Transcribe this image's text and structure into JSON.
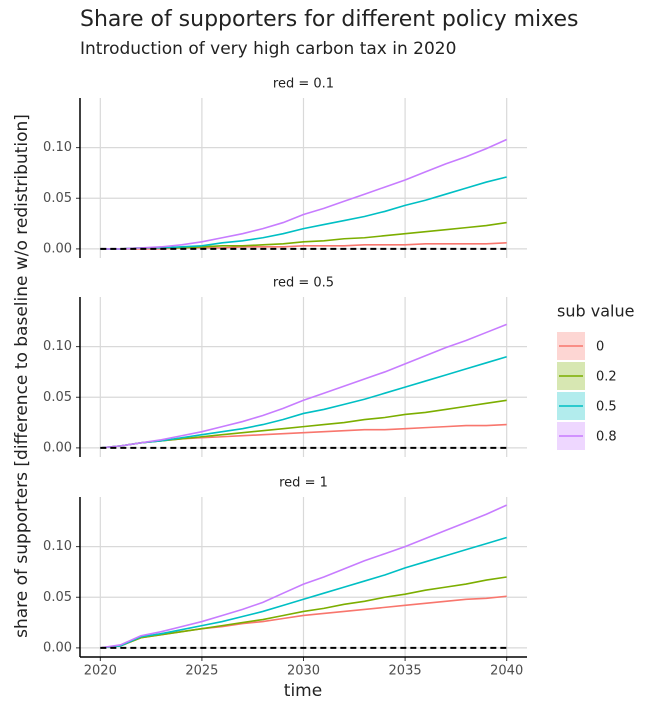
{
  "title": "Share of supporters for different policy mixes",
  "subtitle": "Introduction of very high carbon tax in 2020",
  "y_label": "share of supporters [difference to baseline w/o redistribution]",
  "x_label": "time",
  "legend_title": "sub value",
  "chart_data": [
    {
      "type": "line",
      "title": "red = 0.1",
      "x": [
        2020,
        2021,
        2022,
        2023,
        2024,
        2025,
        2026,
        2027,
        2028,
        2029,
        2030,
        2031,
        2032,
        2033,
        2034,
        2035,
        2036,
        2037,
        2038,
        2039,
        2040
      ],
      "xlim": [
        2019,
        2041
      ],
      "xticks": [
        2020,
        2025,
        2030,
        2035,
        2040
      ],
      "ylim": [
        -0.009,
        0.149
      ],
      "yticks": [
        {
          "value": 0,
          "label": "0.00"
        },
        {
          "value": 0.05,
          "label": "0.05"
        },
        {
          "value": 0.1,
          "label": "0.10"
        }
      ],
      "hline": 0,
      "grid": true,
      "series": [
        {
          "name": "0",
          "color": "#F8766D",
          "values": [
            0,
            0,
            0,
            0,
            0.001,
            0.001,
            0.001,
            0.002,
            0.002,
            0.002,
            0.003,
            0.003,
            0.003,
            0.004,
            0.004,
            0.004,
            0.005,
            0.005,
            0.005,
            0.005,
            0.006
          ]
        },
        {
          "name": "0.2",
          "color": "#7CAE00",
          "values": [
            0,
            0,
            0.001,
            0.001,
            0.001,
            0.002,
            0.003,
            0.003,
            0.004,
            0.005,
            0.007,
            0.008,
            0.01,
            0.011,
            0.013,
            0.015,
            0.017,
            0.019,
            0.021,
            0.023,
            0.026
          ]
        },
        {
          "name": "0.5",
          "color": "#00BFC4",
          "values": [
            0,
            0,
            0.001,
            0.001,
            0.002,
            0.003,
            0.006,
            0.008,
            0.011,
            0.015,
            0.02,
            0.024,
            0.028,
            0.032,
            0.037,
            0.043,
            0.048,
            0.054,
            0.06,
            0.066,
            0.071
          ]
        },
        {
          "name": "0.8",
          "color": "#C77CFF",
          "values": [
            0,
            0,
            0.001,
            0.002,
            0.004,
            0.007,
            0.011,
            0.015,
            0.02,
            0.026,
            0.034,
            0.04,
            0.047,
            0.054,
            0.061,
            0.068,
            0.076,
            0.084,
            0.091,
            0.099,
            0.108
          ]
        }
      ]
    },
    {
      "type": "line",
      "title": "red = 0.5",
      "x": [
        2020,
        2021,
        2022,
        2023,
        2024,
        2025,
        2026,
        2027,
        2028,
        2029,
        2030,
        2031,
        2032,
        2033,
        2034,
        2035,
        2036,
        2037,
        2038,
        2039,
        2040
      ],
      "xlim": [
        2019,
        2041
      ],
      "xticks": [
        2020,
        2025,
        2030,
        2035,
        2040
      ],
      "ylim": [
        -0.009,
        0.149
      ],
      "yticks": [
        {
          "value": 0,
          "label": "0.00"
        },
        {
          "value": 0.05,
          "label": "0.05"
        },
        {
          "value": 0.1,
          "label": "0.10"
        }
      ],
      "hline": 0,
      "grid": true,
      "series": [
        {
          "name": "0",
          "color": "#F8766D",
          "values": [
            0,
            0.002,
            0.005,
            0.007,
            0.009,
            0.01,
            0.011,
            0.012,
            0.013,
            0.014,
            0.015,
            0.016,
            0.017,
            0.018,
            0.018,
            0.019,
            0.02,
            0.021,
            0.022,
            0.022,
            0.023
          ]
        },
        {
          "name": "0.2",
          "color": "#7CAE00",
          "values": [
            0,
            0.002,
            0.005,
            0.007,
            0.009,
            0.011,
            0.013,
            0.015,
            0.017,
            0.019,
            0.021,
            0.023,
            0.025,
            0.028,
            0.03,
            0.033,
            0.035,
            0.038,
            0.041,
            0.044,
            0.047
          ]
        },
        {
          "name": "0.5",
          "color": "#00BFC4",
          "values": [
            0,
            0.002,
            0.005,
            0.007,
            0.01,
            0.013,
            0.016,
            0.019,
            0.023,
            0.028,
            0.034,
            0.038,
            0.043,
            0.048,
            0.054,
            0.06,
            0.066,
            0.072,
            0.078,
            0.084,
            0.09
          ]
        },
        {
          "name": "0.8",
          "color": "#C77CFF",
          "values": [
            0,
            0.002,
            0.005,
            0.008,
            0.012,
            0.016,
            0.021,
            0.026,
            0.032,
            0.039,
            0.047,
            0.054,
            0.061,
            0.068,
            0.075,
            0.083,
            0.091,
            0.099,
            0.106,
            0.114,
            0.122
          ]
        }
      ]
    },
    {
      "type": "line",
      "title": "red = 1",
      "x": [
        2020,
        2021,
        2022,
        2023,
        2024,
        2025,
        2026,
        2027,
        2028,
        2029,
        2030,
        2031,
        2032,
        2033,
        2034,
        2035,
        2036,
        2037,
        2038,
        2039,
        2040
      ],
      "xlim": [
        2019,
        2041
      ],
      "xticks": [
        2020,
        2025,
        2030,
        2035,
        2040
      ],
      "ylim": [
        -0.009,
        0.149
      ],
      "yticks": [
        {
          "value": 0,
          "label": "0.00"
        },
        {
          "value": 0.05,
          "label": "0.05"
        },
        {
          "value": 0.1,
          "label": "0.10"
        }
      ],
      "hline": 0,
      "grid": true,
      "series": [
        {
          "name": "0",
          "color": "#F8766D",
          "values": [
            0,
            0.002,
            0.01,
            0.013,
            0.016,
            0.019,
            0.021,
            0.024,
            0.026,
            0.029,
            0.032,
            0.034,
            0.036,
            0.038,
            0.04,
            0.042,
            0.044,
            0.046,
            0.048,
            0.049,
            0.051
          ]
        },
        {
          "name": "0.2",
          "color": "#7CAE00",
          "values": [
            0,
            0.002,
            0.01,
            0.013,
            0.016,
            0.019,
            0.022,
            0.025,
            0.028,
            0.032,
            0.036,
            0.039,
            0.043,
            0.046,
            0.05,
            0.053,
            0.057,
            0.06,
            0.063,
            0.067,
            0.07
          ]
        },
        {
          "name": "0.5",
          "color": "#00BFC4",
          "values": [
            0,
            0.002,
            0.011,
            0.014,
            0.018,
            0.022,
            0.026,
            0.031,
            0.036,
            0.042,
            0.048,
            0.054,
            0.06,
            0.066,
            0.072,
            0.079,
            0.085,
            0.091,
            0.097,
            0.103,
            0.109
          ]
        },
        {
          "name": "0.8",
          "color": "#C77CFF",
          "values": [
            0,
            0.003,
            0.012,
            0.016,
            0.021,
            0.026,
            0.032,
            0.038,
            0.045,
            0.054,
            0.063,
            0.07,
            0.078,
            0.086,
            0.093,
            0.1,
            0.108,
            0.116,
            0.124,
            0.132,
            0.141
          ]
        }
      ]
    }
  ]
}
